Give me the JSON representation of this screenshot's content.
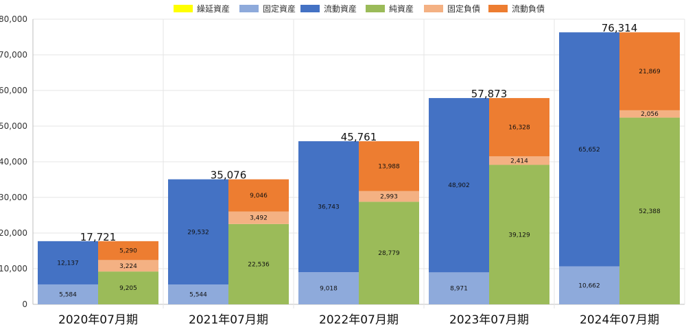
{
  "chart_data": {
    "type": "bar",
    "stacked": true,
    "title": "",
    "xlabel": "",
    "ylabel": "",
    "ylim": [
      0,
      80000
    ],
    "ytick_step": 10000,
    "grid": true,
    "legend_position": "top-center",
    "categories": [
      "2020年07月期",
      "2021年07月期",
      "2022年07月期",
      "2023年07月期",
      "2024年07月期"
    ],
    "legend": [
      {
        "key": "deferred_assets",
        "label": "繰延資産",
        "color": "#ffff00"
      },
      {
        "key": "fixed_assets",
        "label": "固定資産",
        "color": "#8eaadb"
      },
      {
        "key": "current_assets",
        "label": "流動資産",
        "color": "#4472c4"
      },
      {
        "key": "net_assets",
        "label": "純資産",
        "color": "#9bbb59"
      },
      {
        "key": "fixed_liabilities",
        "label": "固定負債",
        "color": "#f4b183"
      },
      {
        "key": "current_liabilities",
        "label": "流動負債",
        "color": "#ed7d31"
      }
    ],
    "stacks": [
      {
        "name": "assets",
        "series": [
          {
            "key": "deferred_assets",
            "values": [
              0,
              0,
              0,
              0,
              0
            ]
          },
          {
            "key": "fixed_assets",
            "values": [
              5584,
              5544,
              9018,
              8971,
              10662
            ]
          },
          {
            "key": "current_assets",
            "values": [
              12137,
              29532,
              36743,
              48902,
              65652
            ]
          }
        ]
      },
      {
        "name": "liabilities_and_net_assets",
        "series": [
          {
            "key": "net_assets",
            "values": [
              9205,
              22536,
              28779,
              39129,
              52388
            ]
          },
          {
            "key": "fixed_liabilities",
            "values": [
              3224,
              3492,
              2993,
              2414,
              2056
            ]
          },
          {
            "key": "current_liabilities",
            "values": [
              5290,
              9046,
              13988,
              16328,
              21869
            ]
          }
        ]
      }
    ],
    "totals": [
      17721,
      35076,
      45761,
      57873,
      76314
    ]
  }
}
